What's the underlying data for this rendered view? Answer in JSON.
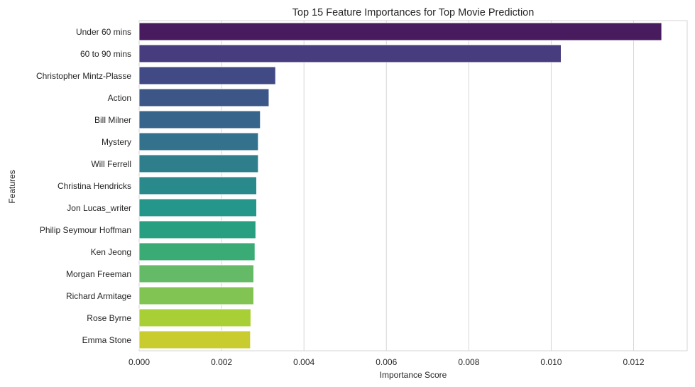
{
  "chart_data": {
    "type": "bar",
    "orientation": "horizontal",
    "title": "Top 15 Feature Importances for Top Movie Prediction",
    "xlabel": "Importance Score",
    "ylabel": "Features",
    "xlim": [
      0,
      0.0133
    ],
    "xticks": [
      "0.000",
      "0.002",
      "0.004",
      "0.006",
      "0.008",
      "0.010",
      "0.012"
    ],
    "grid": true,
    "palette": "viridis",
    "categories": [
      "Under 60 mins",
      "60 to 90 mins",
      "Christopher Mintz-Plasse",
      "Action",
      "Bill Milner",
      "Mystery",
      "Will Ferrell",
      "Christina Hendricks",
      "Jon Lucas_writer",
      "Philip Seymour Hoffman",
      "Ken Jeong",
      "Morgan Freeman",
      "Richard Armitage",
      "Rose Byrne",
      "Emma Stone"
    ],
    "values": [
      0.01268,
      0.01024,
      0.00331,
      0.00315,
      0.00294,
      0.00289,
      0.00289,
      0.00285,
      0.00285,
      0.00283,
      0.00281,
      0.00278,
      0.00278,
      0.00271,
      0.0027
    ],
    "colors": [
      "#481b5e",
      "#473c7d",
      "#424a85",
      "#3c5688",
      "#37648b",
      "#33718c",
      "#2e7e8c",
      "#29898b",
      "#25968a",
      "#289f80",
      "#3aab74",
      "#64ba67",
      "#81c453",
      "#a8cf35",
      "#c8cc2e"
    ]
  }
}
